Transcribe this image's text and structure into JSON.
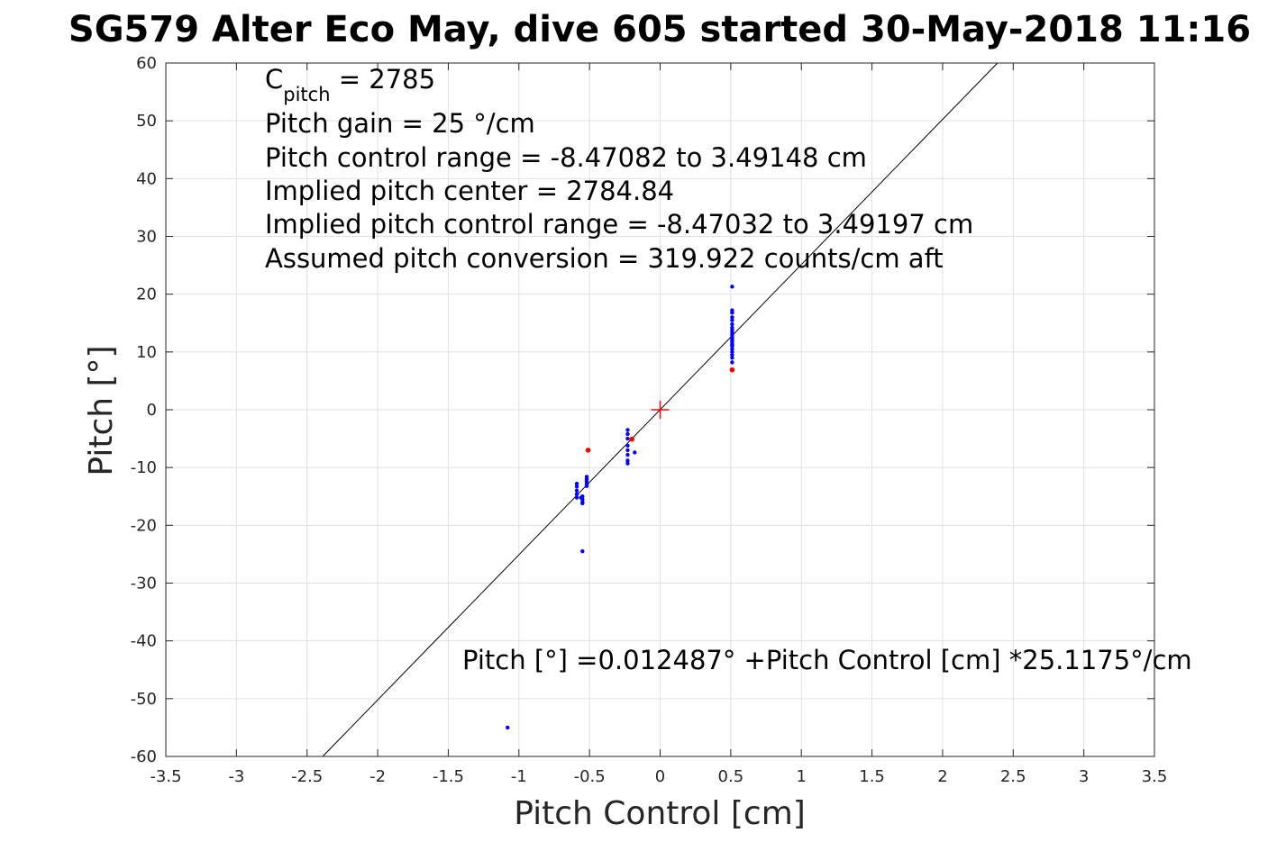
{
  "chart_data": {
    "type": "scatter",
    "title": "SG579 Alter Eco May, dive 605 started 30-May-2018 11:16",
    "xlabel": "Pitch Control [cm]",
    "ylabel": "Pitch [°]",
    "xlim": [
      -3.5,
      3.5
    ],
    "ylim": [
      -60,
      60
    ],
    "xticks": [
      -3.5,
      -3,
      -2.5,
      -2,
      -1.5,
      -1,
      -0.5,
      0,
      0.5,
      1,
      1.5,
      2,
      2.5,
      3,
      3.5
    ],
    "xtick_labels": [
      "-3.5",
      "-3",
      "-2.5",
      "-2",
      "-1.5",
      "-1",
      "-0.5",
      "0",
      "0.5",
      "1",
      "1.5",
      "2",
      "2.5",
      "3",
      "3.5"
    ],
    "yticks": [
      -60,
      -50,
      -40,
      -30,
      -20,
      -10,
      0,
      10,
      20,
      30,
      40,
      50,
      60
    ],
    "ytick_labels": [
      "-60",
      "-50",
      "-40",
      "-30",
      "-20",
      "-10",
      "0",
      "10",
      "20",
      "30",
      "40",
      "50",
      "60"
    ],
    "grid": true,
    "fit_line": {
      "intercept": 0.012487,
      "slope": 25.1175
    },
    "center_marker": {
      "x": 0,
      "y": 0,
      "color": "#ff0000"
    },
    "series": [
      {
        "color": "#0000ff",
        "points": [
          [
            0.51,
            21.3
          ],
          [
            0.51,
            17.2
          ],
          [
            0.51,
            16.8
          ],
          [
            0.51,
            16.0
          ],
          [
            0.51,
            15.5
          ],
          [
            0.51,
            14.8
          ],
          [
            0.51,
            14.2
          ],
          [
            0.51,
            13.8
          ],
          [
            0.51,
            13.4
          ],
          [
            0.51,
            13.0
          ],
          [
            0.51,
            12.6
          ],
          [
            0.51,
            12.2
          ],
          [
            0.51,
            11.8
          ],
          [
            0.51,
            11.4
          ],
          [
            0.51,
            11.0
          ],
          [
            0.51,
            10.5
          ],
          [
            0.51,
            10.0
          ],
          [
            0.51,
            9.5
          ],
          [
            0.51,
            9.0
          ],
          [
            0.51,
            8.2
          ],
          [
            0.51,
            12.0
          ],
          [
            0.51,
            11.2
          ],
          [
            -0.23,
            -3.5
          ],
          [
            -0.23,
            -4.2
          ],
          [
            -0.23,
            -5.0
          ],
          [
            -0.23,
            -6.2
          ],
          [
            -0.23,
            -7.0
          ],
          [
            -0.23,
            -7.8
          ],
          [
            -0.23,
            -8.8
          ],
          [
            -0.23,
            -9.3
          ],
          [
            -0.18,
            -7.4
          ],
          [
            -0.52,
            -11.6
          ],
          [
            -0.52,
            -12.0
          ],
          [
            -0.52,
            -12.4
          ],
          [
            -0.52,
            -12.8
          ],
          [
            -0.52,
            -13.2
          ],
          [
            -0.55,
            -15.0
          ],
          [
            -0.55,
            -15.5
          ],
          [
            -0.55,
            -16.0
          ],
          [
            -0.55,
            -16.2
          ],
          [
            -0.56,
            -15.2
          ],
          [
            -0.59,
            -12.8
          ],
          [
            -0.59,
            -13.3
          ],
          [
            -0.59,
            -14.0
          ],
          [
            -0.59,
            -14.6
          ],
          [
            -0.59,
            -15.2
          ],
          [
            -0.55,
            -24.5
          ],
          [
            -1.08,
            -55.0
          ]
        ]
      },
      {
        "color": "#ff0000",
        "points": [
          [
            0.51,
            6.9
          ],
          [
            -0.51,
            -7.0
          ],
          [
            -0.2,
            -5.1
          ]
        ]
      }
    ],
    "annotations": {
      "c_pitch_symbol": "C",
      "c_pitch_subscript": "pitch",
      "c_pitch_value": " = 2785",
      "line1": "Pitch gain = 25 °/cm",
      "line2": "Pitch control range = -8.47082 to 3.49148 cm",
      "line3": "Implied pitch center = 2784.84",
      "line4": "Implied pitch control range = -8.47032 to 3.49197 cm",
      "line5": "Assumed pitch conversion = 319.922 counts/cm aft",
      "fit_equation": "Pitch [°] =0.012487° +Pitch Control [cm] *25.1175°/cm"
    }
  }
}
